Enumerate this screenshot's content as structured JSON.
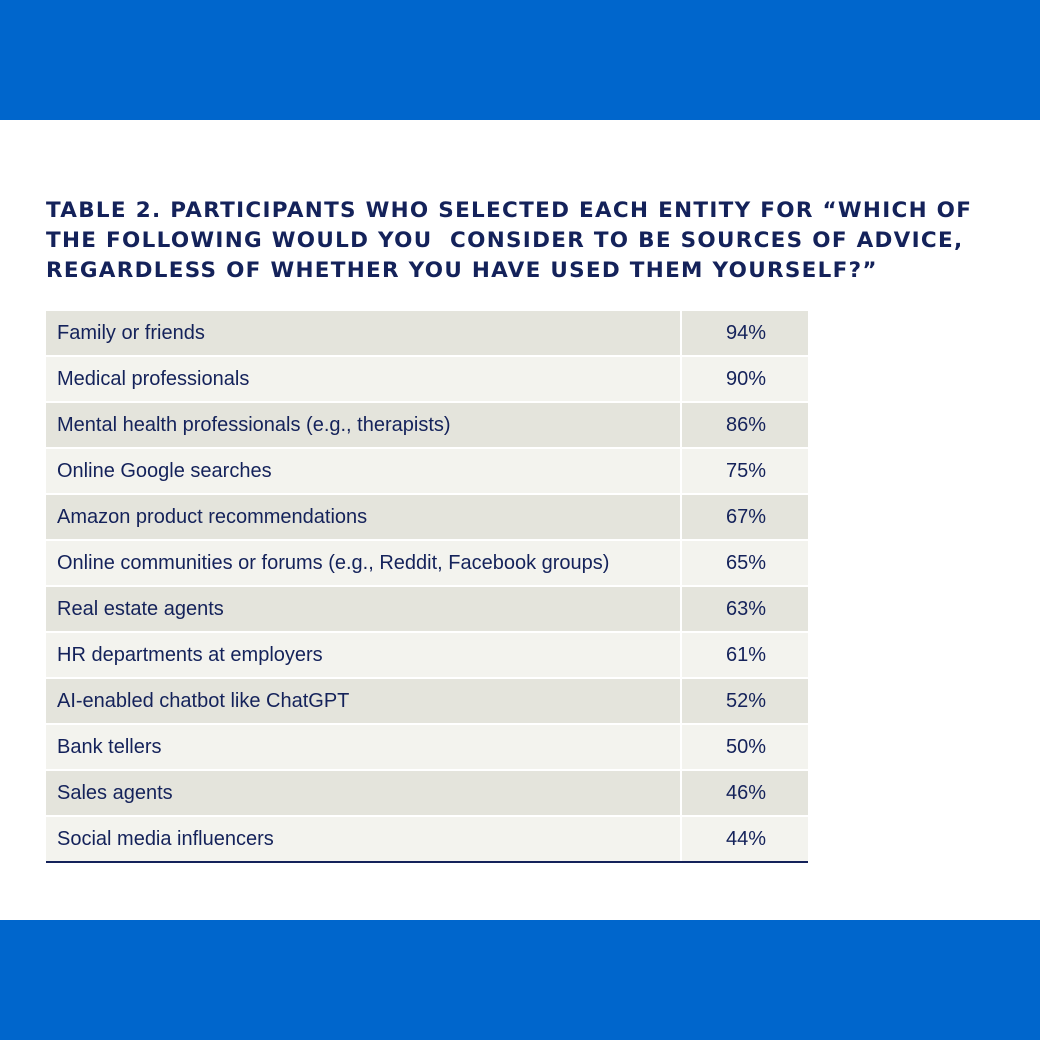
{
  "colors": {
    "band": "#0066cc",
    "title_text": "#14225a",
    "row_dark": "#e4e4dc",
    "row_light": "#f3f3ee"
  },
  "title": "TABLE 2. PARTICIPANTS WHO SELECTED EACH ENTITY FOR “WHICH OF\nTHE FOLLOWING WOULD YOU  CONSIDER TO BE SOURCES OF ADVICE,\nREGARDLESS OF WHETHER YOU HAVE USED THEM YOURSELF?”",
  "table": {
    "rows": [
      {
        "label": "Family or friends",
        "value": "94%"
      },
      {
        "label": "Medical professionals",
        "value": "90%"
      },
      {
        "label": "Mental health professionals (e.g., therapists)",
        "value": "86%"
      },
      {
        "label": "Online Google searches",
        "value": "75%"
      },
      {
        "label": "Amazon product recommendations",
        "value": "67%"
      },
      {
        "label": "Online communities or forums (e.g., Reddit, Facebook groups)",
        "value": "65%"
      },
      {
        "label": "Real estate agents",
        "value": "63%"
      },
      {
        "label": "HR departments at employers",
        "value": "61%"
      },
      {
        "label": "AI-enabled chatbot like ChatGPT",
        "value": "52%"
      },
      {
        "label": "Bank tellers",
        "value": "50%"
      },
      {
        "label": "Sales agents",
        "value": "46%"
      },
      {
        "label": "Social media influencers",
        "value": "44%"
      }
    ]
  }
}
